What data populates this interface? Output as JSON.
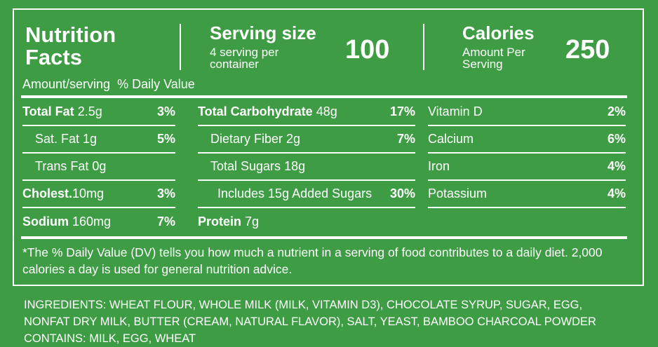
{
  "header": {
    "title": "Nutrition Facts",
    "serving_label": "Serving size",
    "serving_sub": "4 serving per container",
    "serving_value": "100",
    "calories_label": "Calories",
    "calories_sub": "Amount Per Serving",
    "calories_value": "250"
  },
  "amount_header": {
    "amount": "Amount/serving",
    "daily_value": "% Daily Value"
  },
  "columns": [
    [
      {
        "name": "Total Fat",
        "amount": "2.5g",
        "dv": "3%"
      },
      {
        "name": "Sat. Fat",
        "amount": "1g",
        "dv": "5%"
      },
      {
        "name": "Trans Fat",
        "amount": "0g"
      },
      {
        "name": "Cholest.",
        "amount": "10mg",
        "dv": "3%"
      },
      {
        "name": "Sodium",
        "amount": "160mg",
        "dv": "7%"
      }
    ],
    [
      {
        "name": "Total Carbohydrate",
        "amount": "48g",
        "dv": "17%"
      },
      {
        "name": "Dietary Fiber",
        "amount": "2g",
        "dv": "7%"
      },
      {
        "name": "Total Sugars",
        "amount": "18g"
      },
      {
        "name": "Includes 15g Added Sugars",
        "dv": "30%"
      },
      {
        "name": "Protein",
        "amount": "7g"
      }
    ],
    [
      {
        "name": "Vitamin D",
        "dv": "2%"
      },
      {
        "name": "Calcium",
        "dv": "6%"
      },
      {
        "name": "Iron",
        "dv": "4%"
      },
      {
        "name": "Potassium",
        "dv": "4%"
      }
    ]
  ],
  "footnote": "*The % Daily Value (DV) tells you how much a nutrient in a  serving of food contributes to a daily diet. 2,000 calories a day is used for general nutrition advice.",
  "ingredients": [
    "INGREDIENTS: WHEAT FLOUR, WHOLE MILK (MILK, VITAMIN D3), CHOCOLATE SYRUP, SUGAR, EGG,",
    "NONFAT DRY MILK, BUTTER (CREAM, NATURAL FLAVOR), SALT, YEAST, BAMBOO CHARCOAL POWDER",
    "CONTAINS: MILK, EGG, WHEAT"
  ]
}
